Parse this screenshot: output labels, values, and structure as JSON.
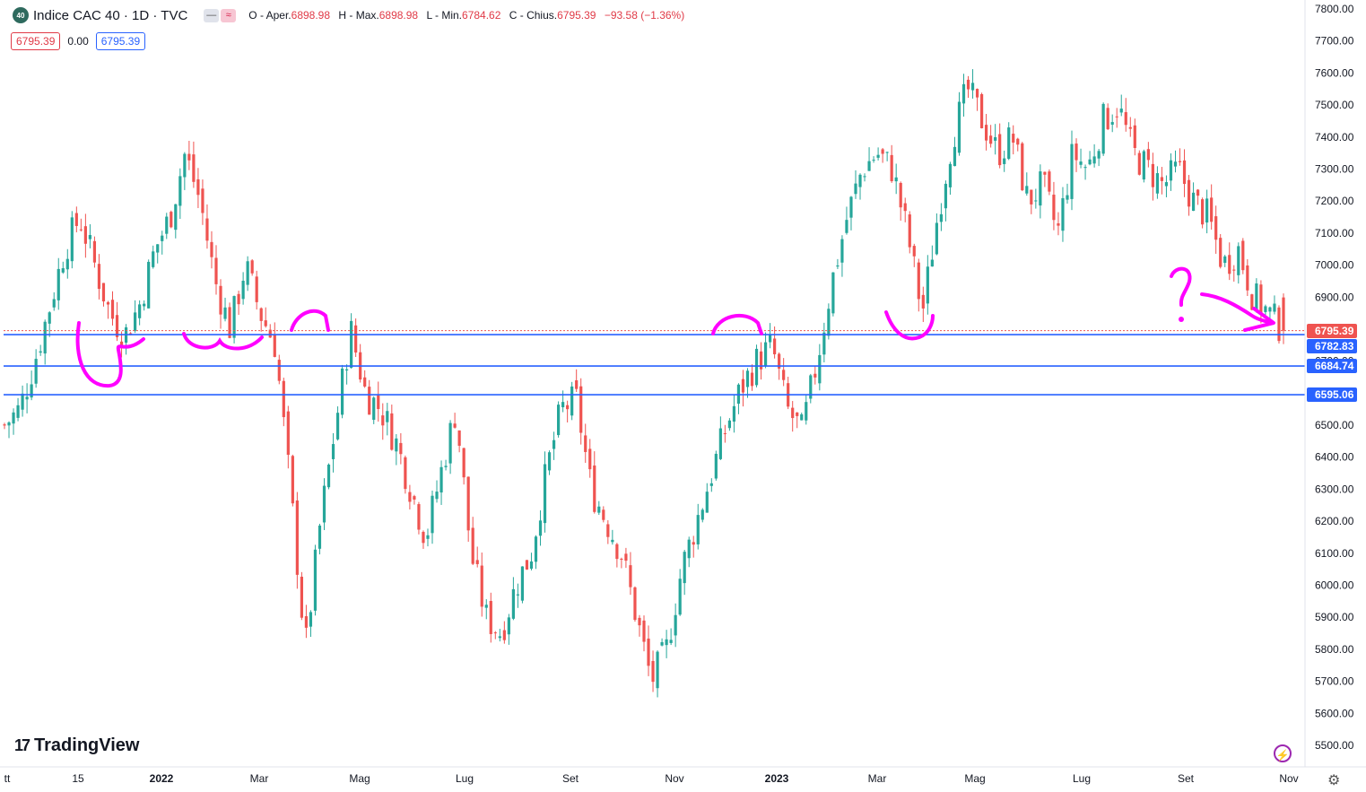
{
  "legend": {
    "badge": "40",
    "title": "Indice CAC 40 · 1D · TVC",
    "ohlc": [
      {
        "label": "O - Aper.",
        "value": "6898.98"
      },
      {
        "label": "H - Max.",
        "value": "6898.98"
      },
      {
        "label": "L - Min.",
        "value": "6784.62"
      },
      {
        "label": "C - Chius.",
        "value": "6795.39"
      },
      {
        "label": "",
        "value": "−93.58 (−1.36%)"
      }
    ],
    "price_left": "6795.39",
    "change": "0.00",
    "price_right": "6795.39"
  },
  "brand": "TradingView",
  "colors": {
    "up": "#26a69a",
    "down": "#ef5350",
    "hline": "#2962ff",
    "current": "#ef5350",
    "annotation": "#ff00ff"
  },
  "icons": [
    "flash-icon",
    "gear-icon"
  ],
  "chart_data": {
    "type": "candlestick",
    "title": "Indice CAC 40 · 1D · TVC",
    "ylim": [
      5450,
      7810
    ],
    "yticks": [
      5500,
      5600,
      5700,
      5800,
      5900,
      6000,
      6100,
      6200,
      6300,
      6400,
      6500,
      6600,
      6700,
      6800,
      6900,
      7000,
      7100,
      7200,
      7300,
      7400,
      7500,
      7600,
      7700,
      7800
    ],
    "ytick_labels": [
      "5500.00",
      "5600.00",
      "5700.00",
      "5800.00",
      "5900.00",
      "6000.00",
      "6100.00",
      "6200.00",
      "6300.00",
      "6400.00",
      "6500.00",
      "6600.00",
      "6700.00",
      "6800.00",
      "6900.00",
      "7000.00",
      "7100.00",
      "7200.00",
      "7300.00",
      "7400.00",
      "7500.00",
      "7600.00",
      "7700.00",
      "7800.00"
    ],
    "xlabels": [
      {
        "label": "tt",
        "bold": false
      },
      {
        "label": "15",
        "bold": false
      },
      {
        "label": "2022",
        "bold": true
      },
      {
        "label": "Mar",
        "bold": false
      },
      {
        "label": "Mag",
        "bold": false
      },
      {
        "label": "Lug",
        "bold": false
      },
      {
        "label": "Set",
        "bold": false
      },
      {
        "label": "Nov",
        "bold": false
      },
      {
        "label": "2023",
        "bold": true
      },
      {
        "label": "Mar",
        "bold": false
      },
      {
        "label": "Mag",
        "bold": false
      },
      {
        "label": "Lug",
        "bold": false
      },
      {
        "label": "Set",
        "bold": false
      },
      {
        "label": "Nov",
        "bold": false
      }
    ],
    "close_path": [
      6500,
      6550,
      6700,
      6870,
      7050,
      7150,
      7000,
      6850,
      6780,
      6880,
      7050,
      7150,
      7350,
      7200,
      6950,
      6800,
      7000,
      6850,
      6750,
      6300,
      5800,
      6200,
      6500,
      6800,
      6600,
      6550,
      6450,
      6300,
      6150,
      6350,
      6550,
      6100,
      5900,
      5850,
      6000,
      6100,
      6350,
      6550,
      6580,
      6300,
      6200,
      6100,
      5900,
      5700,
      5800,
      6050,
      6200,
      6350,
      6500,
      6620,
      6700,
      6750,
      6550,
      6480,
      6700,
      6950,
      7150,
      7300,
      7350,
      7300,
      7100,
      6850,
      7150,
      7400,
      7550,
      7450,
      7350,
      7400,
      7200,
      7250,
      7100,
      7350,
      7300,
      7450,
      7500,
      7350,
      7300,
      7250,
      7300,
      7200,
      7150,
      7000,
      7050,
      6900,
      6850,
      6795.39
    ],
    "current_close": 6795.39,
    "price_labels": [
      {
        "value": 6795.39,
        "label": "6795.39",
        "kind": "current"
      },
      {
        "value": 6782.83,
        "label": "6782.83",
        "kind": "hline"
      },
      {
        "value": 6684.74,
        "label": "6684.74",
        "kind": "hline"
      },
      {
        "value": 6595.06,
        "label": "6595.06",
        "kind": "hline"
      }
    ],
    "annotations": {
      "drawn_marks": [
        "U",
        "U",
        "U",
        "∩",
        "∩",
        "U",
        "?",
        "arrow"
      ],
      "question": "?"
    }
  }
}
